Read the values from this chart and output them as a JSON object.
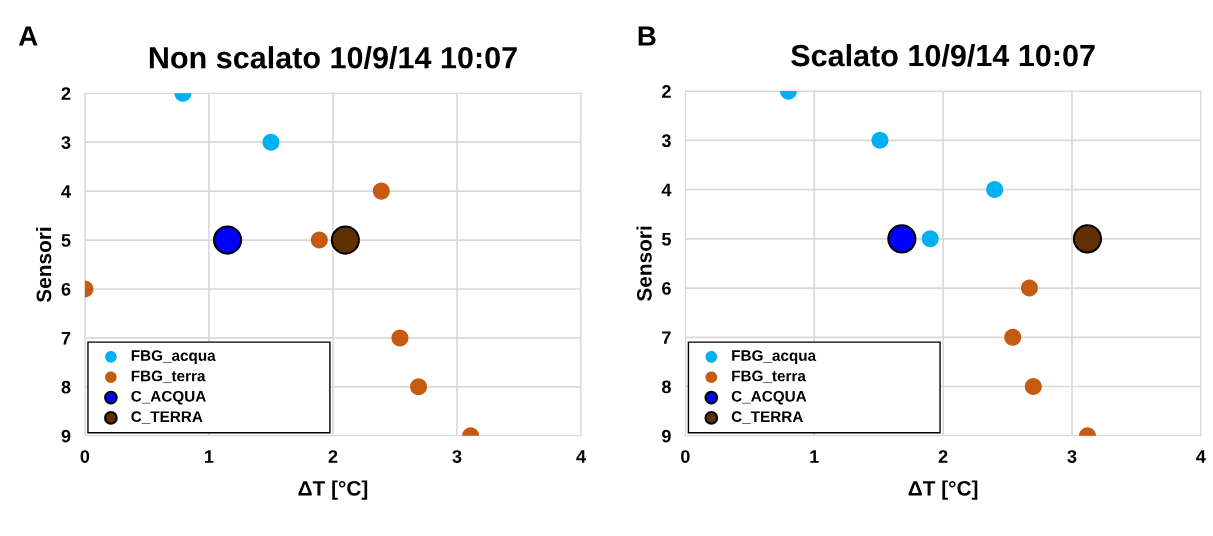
{
  "chart_data": [
    {
      "type": "scatter",
      "title": "Non scalato 10/9/14 10:07",
      "xlabel": "ΔT [°C]",
      "ylabel": "Sensori",
      "annotations": [
        "A"
      ],
      "xlim": [
        0,
        4
      ],
      "xticks": [
        0,
        1,
        2,
        3,
        4
      ],
      "ylim": [
        9,
        2
      ],
      "yticks": [
        2,
        3,
        4,
        5,
        6,
        7,
        8,
        9
      ],
      "grid": true,
      "legend": "bottom left",
      "marker": "circle",
      "series": [
        {
          "name": "FBG_acqua",
          "color": "#00b0f0",
          "x": [
            0.79,
            1.5
          ],
          "values": [
            2,
            3
          ]
        },
        {
          "name": "FBG_terra",
          "color": "#c55a11",
          "x": [
            2.39,
            1.89,
            0,
            2.54,
            2.69,
            3.11
          ],
          "values": [
            4,
            5,
            6,
            7,
            8,
            9
          ]
        },
        {
          "name": "C_ACQUA",
          "color": "#0000ff",
          "x": [
            1.15
          ],
          "values": [
            5
          ]
        },
        {
          "name": "C_TERRA",
          "color": "#603000",
          "x": [
            2.1
          ],
          "values": [
            5
          ]
        }
      ]
    },
    {
      "type": "scatter",
      "title": "Scalato 10/9/14 10:07",
      "xlabel": "ΔT [°C]",
      "ylabel": "Sensori",
      "annotations": [
        "B"
      ],
      "xlim": [
        0,
        4
      ],
      "xticks": [
        0,
        1,
        2,
        3,
        4
      ],
      "ylim": [
        9,
        2
      ],
      "yticks": [
        2,
        3,
        4,
        5,
        6,
        7,
        8,
        9
      ],
      "grid": true,
      "legend": "bottom left",
      "marker": "circle",
      "series": [
        {
          "name": "FBG_acqua",
          "color": "#00b0f0",
          "x": [
            0.8,
            1.51,
            2.4,
            1.9
          ],
          "values": [
            2,
            3,
            4,
            5
          ]
        },
        {
          "name": "FBG_terra",
          "color": "#c55a11",
          "x": [
            2.67,
            2.54,
            2.7,
            3.12
          ],
          "values": [
            6,
            7,
            8,
            9
          ]
        },
        {
          "name": "C_ACQUA",
          "color": "#0000ff",
          "x": [
            1.68
          ],
          "values": [
            5
          ]
        },
        {
          "name": "C_TERRA",
          "color": "#603000",
          "x": [
            3.12
          ],
          "values": [
            5
          ]
        }
      ]
    }
  ]
}
